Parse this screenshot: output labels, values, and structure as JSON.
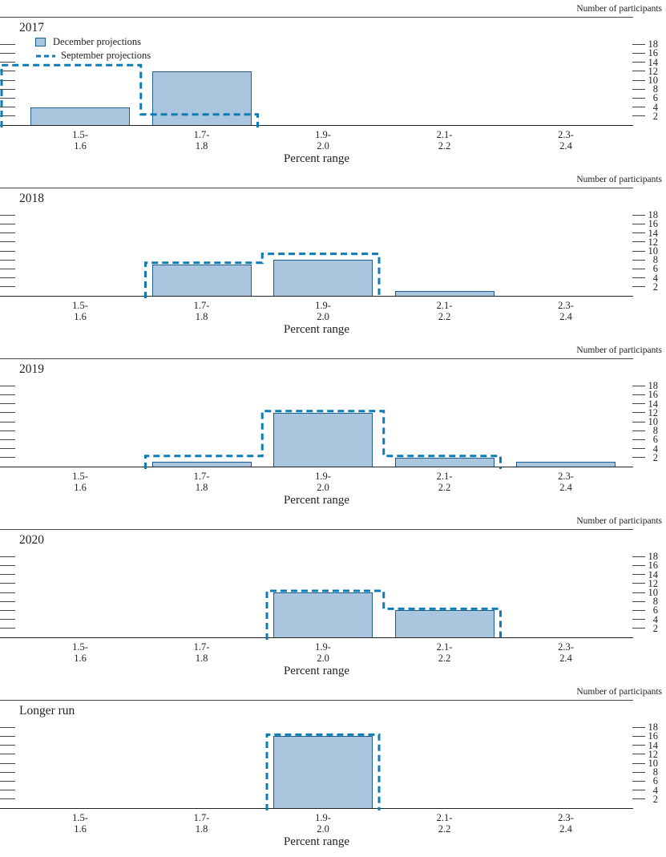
{
  "colors": {
    "bar_fill": "#aac5de",
    "bar_border": "#1c5f8e",
    "september_line": "#0d7cb5",
    "axis_line": "#444444"
  },
  "axis": {
    "right_label": "Number of participants",
    "x_label": "Percent range",
    "y_ticks": [
      2,
      4,
      6,
      8,
      10,
      12,
      14,
      16,
      18
    ]
  },
  "legend": {
    "december": "December projections",
    "september": "September projections"
  },
  "chart_data": [
    {
      "type": "bar",
      "title": "2017",
      "categories": [
        "1.5-1.6",
        "1.7-1.8",
        "1.9-2.0",
        "2.1-2.2",
        "2.3-2.4"
      ],
      "ylim": [
        0,
        18
      ],
      "ylabel": "Number of participants",
      "xlabel": "Percent range",
      "legend_position": "top-left",
      "series": [
        {
          "name": "December projections",
          "values": [
            4,
            12,
            0,
            0,
            0
          ]
        },
        {
          "name": "September projections",
          "values": [
            13,
            2,
            0,
            0,
            0
          ]
        }
      ],
      "september_extends_left": true
    },
    {
      "type": "bar",
      "title": "2018",
      "categories": [
        "1.5-1.6",
        "1.7-1.8",
        "1.9-2.0",
        "2.1-2.2",
        "2.3-2.4"
      ],
      "ylim": [
        0,
        18
      ],
      "ylabel": "Number of participants",
      "xlabel": "Percent range",
      "series": [
        {
          "name": "December projections",
          "values": [
            0,
            7,
            8,
            1,
            0
          ]
        },
        {
          "name": "September projections",
          "values": [
            0,
            7,
            9,
            0,
            0
          ]
        }
      ],
      "september_extends_left": false
    },
    {
      "type": "bar",
      "title": "2019",
      "categories": [
        "1.5-1.6",
        "1.7-1.8",
        "1.9-2.0",
        "2.1-2.2",
        "2.3-2.4"
      ],
      "ylim": [
        0,
        18
      ],
      "ylabel": "Number of participants",
      "xlabel": "Percent range",
      "series": [
        {
          "name": "December projections",
          "values": [
            0,
            1,
            12,
            2,
            1
          ]
        },
        {
          "name": "September projections",
          "values": [
            0,
            2,
            12,
            2,
            0
          ]
        }
      ],
      "september_extends_left": false
    },
    {
      "type": "bar",
      "title": "2020",
      "categories": [
        "1.5-1.6",
        "1.7-1.8",
        "1.9-2.0",
        "2.1-2.2",
        "2.3-2.4"
      ],
      "ylim": [
        0,
        18
      ],
      "ylabel": "Number of participants",
      "xlabel": "Percent range",
      "series": [
        {
          "name": "December projections",
          "values": [
            0,
            0,
            10,
            6,
            0
          ]
        },
        {
          "name": "September projections",
          "values": [
            0,
            0,
            10,
            6,
            0
          ]
        }
      ],
      "september_extends_left": false
    },
    {
      "type": "bar",
      "title": "Longer run",
      "categories": [
        "1.5-1.6",
        "1.7-1.8",
        "1.9-2.0",
        "2.1-2.2",
        "2.3-2.4"
      ],
      "ylim": [
        0,
        18
      ],
      "ylabel": "Number of participants",
      "xlabel": "Percent range",
      "series": [
        {
          "name": "December projections",
          "values": [
            0,
            0,
            16,
            0,
            0
          ]
        },
        {
          "name": "September projections",
          "values": [
            0,
            0,
            16,
            0,
            0
          ]
        }
      ],
      "september_extends_left": false
    }
  ]
}
